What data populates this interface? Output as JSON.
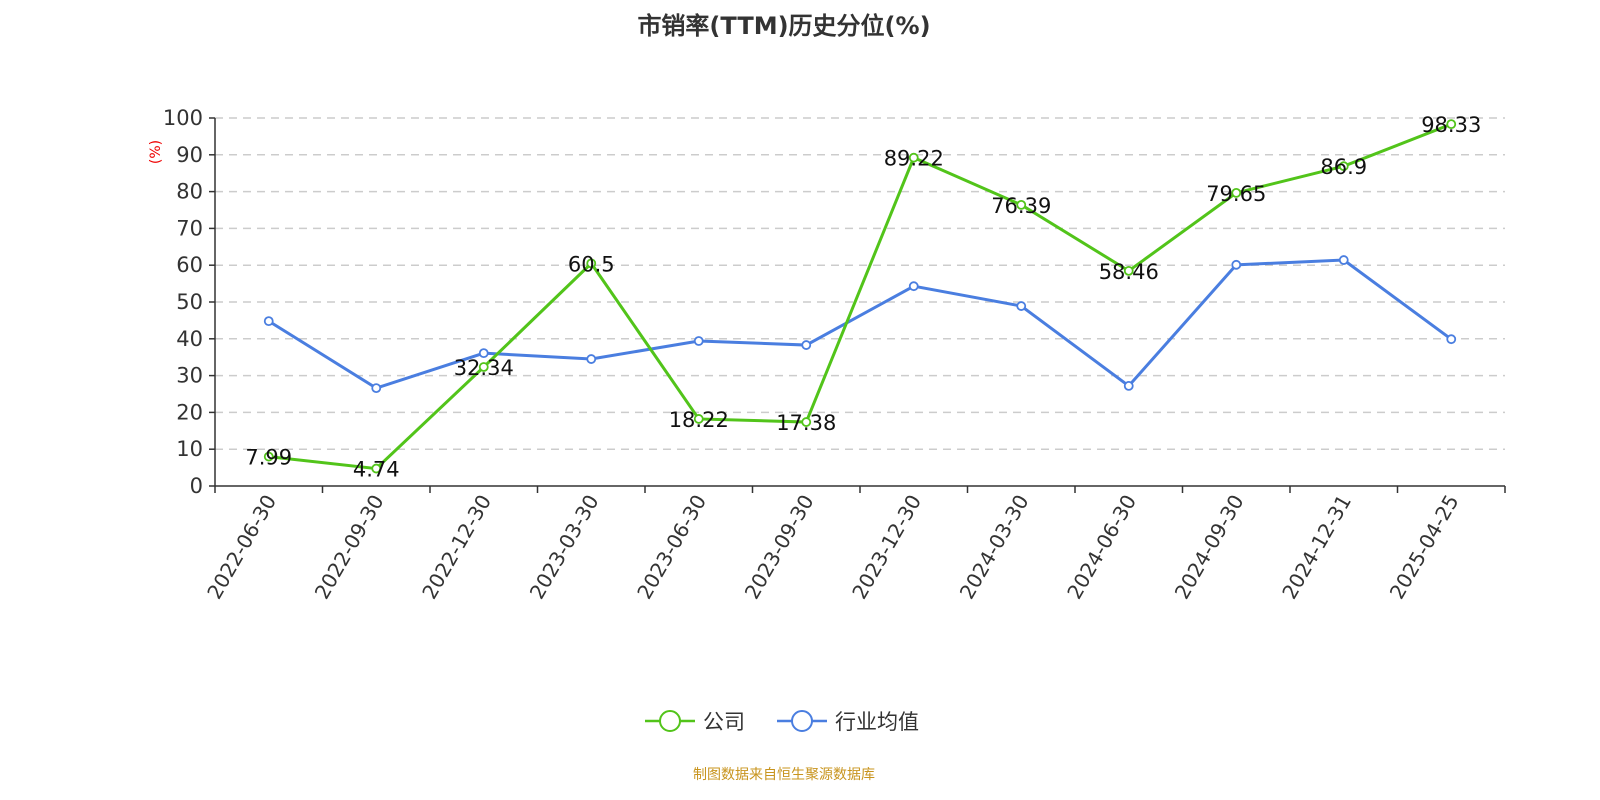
{
  "chart_data": {
    "type": "line",
    "title": "市销率(TTM)历史分位(%)",
    "ylabel": "(%)",
    "ylim": [
      0,
      100
    ],
    "yticks": [
      0,
      10,
      20,
      30,
      40,
      50,
      60,
      70,
      80,
      90,
      100
    ],
    "grid": true,
    "legend_position": "bottom",
    "categories": [
      "2022-06-30",
      "2022-09-30",
      "2022-12-30",
      "2023-03-30",
      "2023-06-30",
      "2023-09-30",
      "2023-12-30",
      "2024-03-30",
      "2024-06-30",
      "2024-09-30",
      "2024-12-31",
      "2025-04-25"
    ],
    "series": [
      {
        "name": "公司",
        "color": "#52c41a",
        "show_labels": true,
        "values": [
          7.99,
          4.74,
          32.34,
          60.5,
          18.22,
          17.38,
          89.22,
          76.39,
          58.46,
          79.65,
          86.9,
          98.33
        ]
      },
      {
        "name": "行业均值",
        "color": "#4a7ee0",
        "show_labels": false,
        "values": [
          44.8,
          26.6,
          36.1,
          34.5,
          39.4,
          38.3,
          54.3,
          48.9,
          27.2,
          60.1,
          61.4,
          39.9
        ]
      }
    ]
  },
  "source": "制图数据来自恒生聚源数据库"
}
